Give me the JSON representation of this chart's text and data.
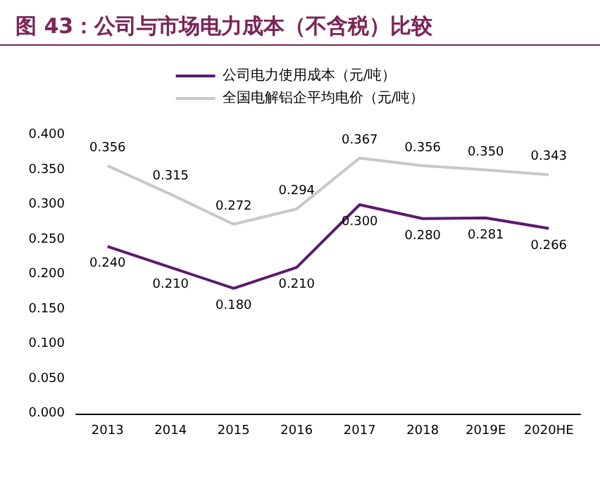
{
  "chart_data": {
    "type": "line",
    "title": "图 43：公司与市场电力成本（不含税）比较",
    "categories": [
      "2013",
      "2014",
      "2015",
      "2016",
      "2017",
      "2018",
      "2019E",
      "2020HE"
    ],
    "series": [
      {
        "name": "公司电力使用成本（元/吨）",
        "color": "#5c1a6e",
        "values": [
          0.24,
          0.21,
          0.18,
          0.21,
          0.3,
          0.28,
          0.281,
          0.266
        ],
        "value_labels": [
          "0.240",
          "0.210",
          "0.180",
          "0.210",
          "0.300",
          "0.280",
          "0.281",
          "0.266"
        ]
      },
      {
        "name": "全国电解铝企平均电价（元/吨）",
        "color": "#c8c8c8",
        "values": [
          0.356,
          0.315,
          0.272,
          0.294,
          0.367,
          0.356,
          0.35,
          0.343
        ],
        "value_labels": [
          "0.356",
          "0.315",
          "0.272",
          "0.294",
          "0.367",
          "0.356",
          "0.350",
          "0.343"
        ]
      }
    ],
    "ylim": [
      0,
      0.4
    ],
    "yticks": [
      {
        "value": 0,
        "label": "0.000"
      },
      {
        "value": 0.05,
        "label": "0.050"
      },
      {
        "value": 0.1,
        "label": "0.100"
      },
      {
        "value": 0.15,
        "label": "0.150"
      },
      {
        "value": 0.2,
        "label": "0.200"
      },
      {
        "value": 0.25,
        "label": "0.250"
      },
      {
        "value": 0.3,
        "label": "0.300"
      },
      {
        "value": 0.35,
        "label": "0.350"
      },
      {
        "value": 0.4,
        "label": "0.400"
      }
    ],
    "grid": false,
    "legend": "top",
    "marker": "none",
    "line_style": "solid"
  }
}
